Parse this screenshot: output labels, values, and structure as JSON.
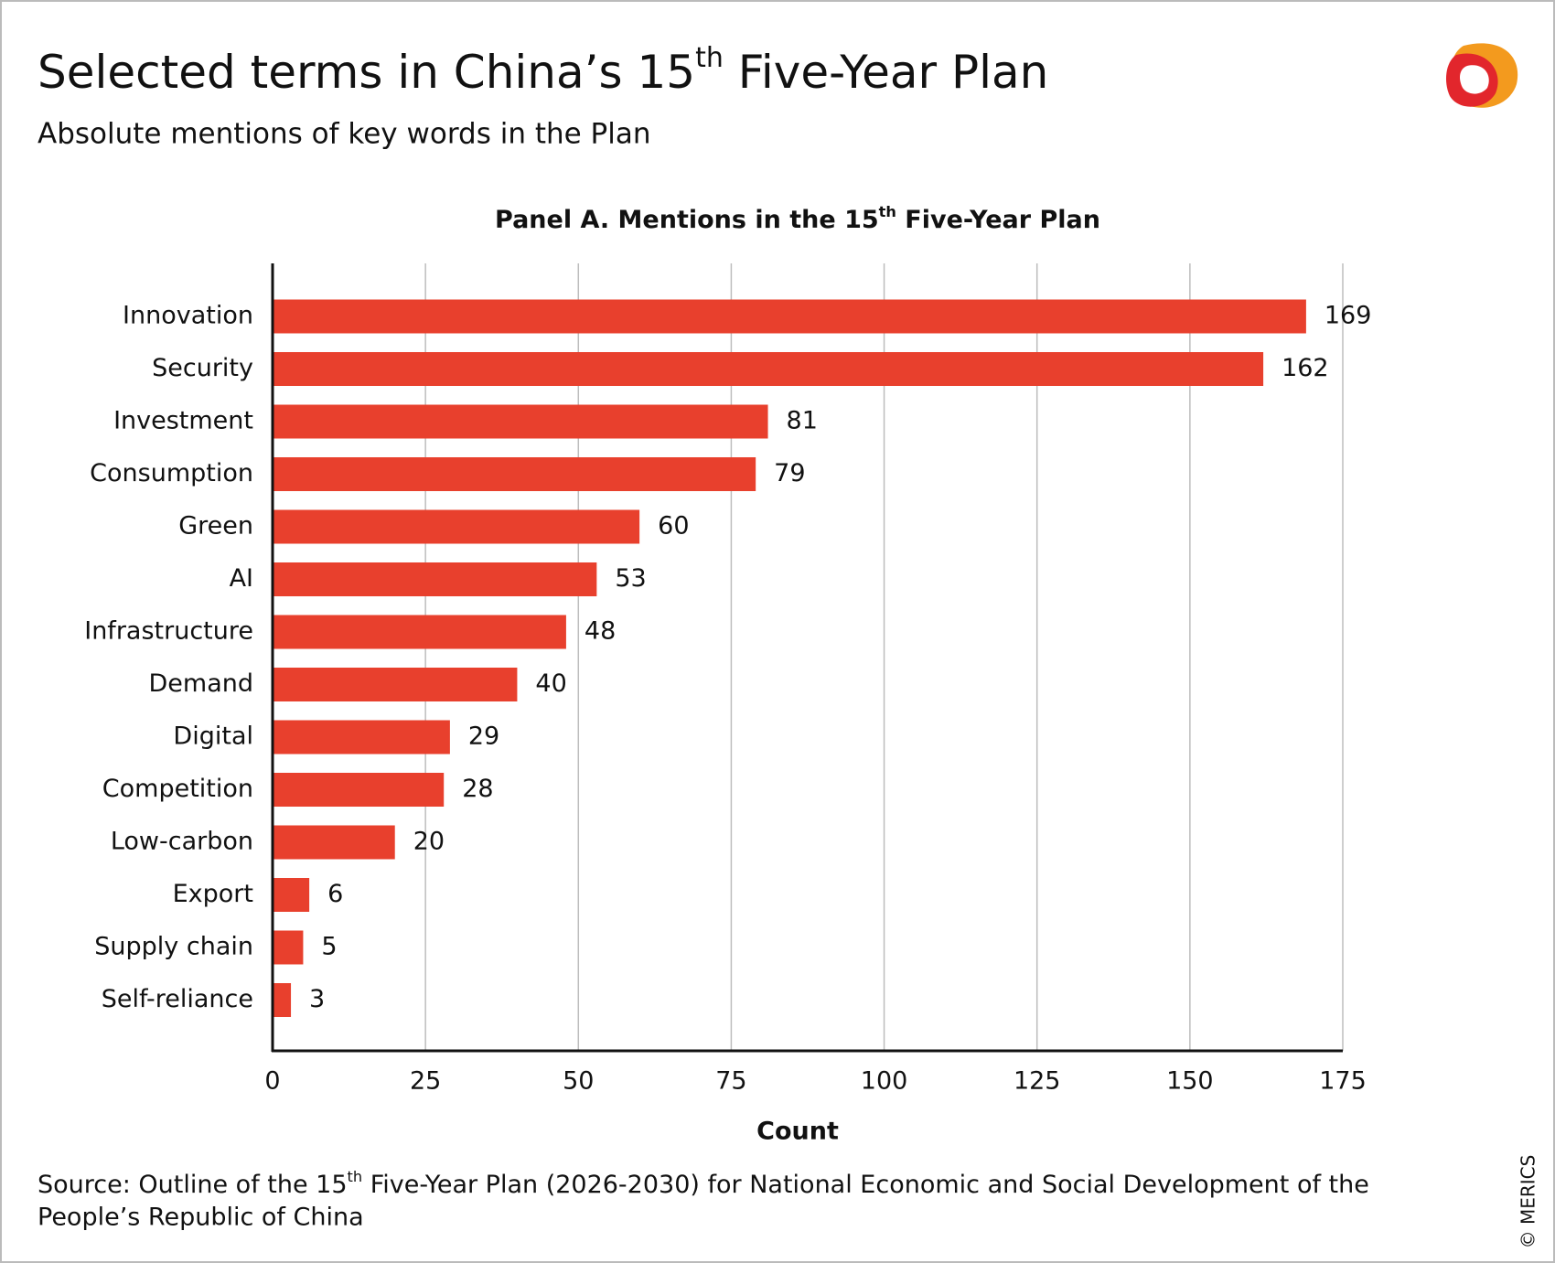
{
  "chart_data": {
    "type": "bar",
    "orientation": "horizontal",
    "title": [
      "Selected terms in China’s 15",
      "th",
      " Five-Year Plan"
    ],
    "subtitle": "Absolute mentions of key words in the Plan",
    "panel_title": [
      "Panel A. Mentions in the 15",
      "th",
      " Five-Year Plan"
    ],
    "categories": [
      "Innovation",
      "Security",
      "Investment",
      "Consumption",
      "Green",
      "AI",
      "Infrastructure",
      "Demand",
      "Digital",
      "Competition",
      "Low-carbon",
      "Export",
      "Supply chain",
      "Self-reliance"
    ],
    "values": [
      169,
      162,
      81,
      79,
      60,
      53,
      48,
      40,
      29,
      28,
      20,
      6,
      5,
      3
    ],
    "color": "#e8402d",
    "xlim": [
      0,
      175
    ],
    "xticks": [
      0,
      25,
      50,
      75,
      100,
      125,
      150,
      175
    ],
    "grid": true,
    "xlabel": "Count",
    "source": [
      "Source: Outline of the 15",
      "th",
      " Five-Year Plan (2026-2030) for National Economic and Social Development of the",
      "People’s Republic of China"
    ],
    "copyright": "© MERICS"
  }
}
